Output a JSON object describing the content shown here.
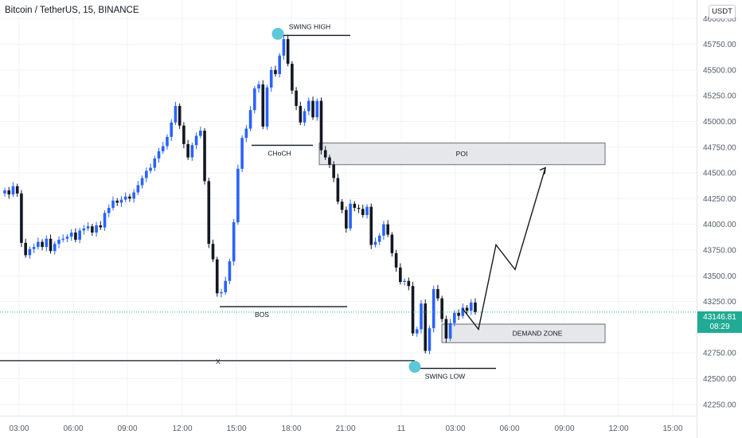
{
  "title": "Bitcoin / TetherUS, 15, BINANCE",
  "currency": "USDT",
  "current_price": "43146.81",
  "countdown": "08:29",
  "colors": {
    "up": "#2962ff",
    "down": "#131722",
    "price_line": "#22ab94",
    "swing_marker": "#5dc8d8"
  },
  "chart_data": {
    "type": "candlestick",
    "title": "Bitcoin / TetherUS, 15, BINANCE",
    "x_ticks": [
      "03:00",
      "06:00",
      "09:00",
      "12:00",
      "15:00",
      "18:00",
      "21:00",
      "11",
      "03:00",
      "06:00",
      "09:00",
      "12:00",
      "15:00"
    ],
    "y_ticks": [
      "46000.00",
      "45750.00",
      "45500.00",
      "45250.00",
      "45000.00",
      "44750.00",
      "44500.00",
      "44250.00",
      "44000.00",
      "43750.00",
      "43500.00",
      "43250.00",
      "42750.00",
      "42500.00",
      "42250.00"
    ],
    "ylim": [
      42140,
      46180
    ],
    "closes": [
      44330,
      44290,
      44370,
      44300,
      43820,
      43700,
      43760,
      43780,
      43830,
      43780,
      43860,
      43740,
      43810,
      43850,
      43860,
      43880,
      43920,
      43850,
      43940,
      43960,
      43980,
      43920,
      43990,
      43970,
      44110,
      44160,
      44230,
      44210,
      44240,
      44270,
      44250,
      44310,
      44380,
      44450,
      44520,
      44550,
      44640,
      44710,
      44760,
      44850,
      44990,
      45150,
      44960,
      44780,
      44650,
      44770,
      44860,
      44910,
      44420,
      43810,
      43660,
      43330,
      43340,
      43450,
      43640,
      44020,
      44540,
      44840,
      44930,
      45110,
      45320,
      45360,
      44950,
      45330,
      45500,
      45460,
      45640,
      45800,
      45560,
      45300,
      45150,
      44990,
      45100,
      45200,
      45040,
      45200,
      44720,
      44650,
      44580,
      44450,
      44220,
      44140,
      43960,
      44200,
      44160,
      44150,
      44090,
      44170,
      43800,
      43830,
      43890,
      44000,
      43900,
      43720,
      43580,
      43440,
      43450,
      43400,
      42940,
      42980,
      43230,
      42770,
      42990,
      43370,
      43280,
      43080,
      42890,
      43040,
      43140,
      43110,
      43190,
      43160,
      43240,
      43147
    ],
    "annotations": [
      {
        "label": "SWING HIGH",
        "price": 45836
      },
      {
        "label": "CHoCH",
        "price": 44768
      },
      {
        "label": "POI",
        "range": [
          44580,
          44790
        ]
      },
      {
        "label": "BOS",
        "price": 43200
      },
      {
        "label": "X",
        "price": 42675
      },
      {
        "label": "DEMAND ZONE",
        "range": [
          42850,
          43030
        ]
      },
      {
        "label": "SWING LOW",
        "price": 42600
      }
    ],
    "projection": [
      43180,
      42980,
      43800,
      43560,
      44550
    ]
  }
}
